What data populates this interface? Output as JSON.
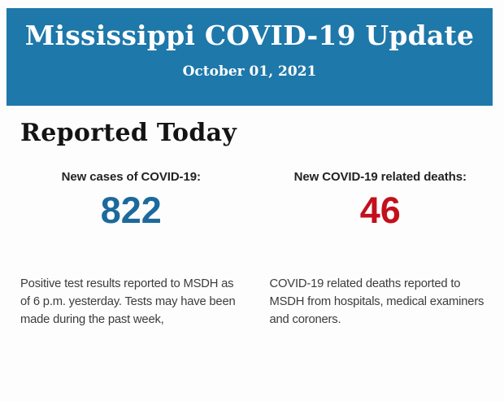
{
  "header": {
    "title": "Mississippi COVID-19 Update",
    "date": "October 01, 2021",
    "background_color": "#1e78aa",
    "text_color": "#ffffff"
  },
  "section": {
    "title": "Reported Today"
  },
  "stats": {
    "cases": {
      "label": "New cases of COVID-19:",
      "value": "822",
      "value_color": "#1c6a9c",
      "description": "Positive test results reported to MSDH as of 6 p.m. yesterday. Tests may have been made during the past week,"
    },
    "deaths": {
      "label": "New COVID-19 related deaths:",
      "value": "46",
      "value_color": "#c2111c",
      "description": "COVID-19 related deaths reported to MSDH from hospitals, medical examiners and coroners."
    }
  }
}
